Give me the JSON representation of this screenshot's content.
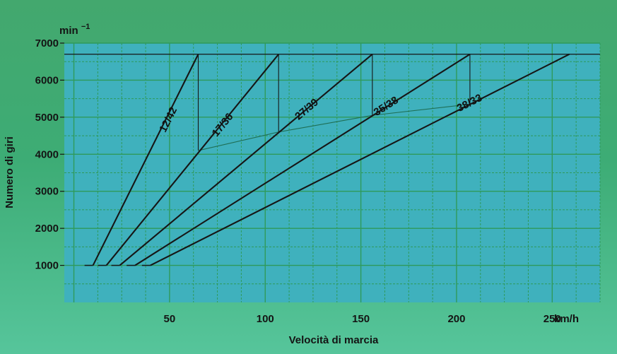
{
  "chart_data": {
    "type": "line",
    "title": "",
    "xlabel": "Velocità di marcia",
    "ylabel": "Numero di giri",
    "y_unit": "min",
    "y_unit_exponent": "−1",
    "x_unit": "km/h",
    "xlim": [
      -5,
      275
    ],
    "ylim": [
      0,
      7000
    ],
    "x_ticks": [
      50,
      100,
      150,
      200,
      250
    ],
    "y_ticks": [
      1000,
      2000,
      3000,
      4000,
      5000,
      6000,
      7000
    ],
    "grid": true,
    "max_rpm": 6700,
    "series": [
      {
        "name": "12/42",
        "x": [
          10,
          65
        ],
        "y": [
          1000,
          6700
        ]
      },
      {
        "name": "17/36",
        "x": [
          17,
          107
        ],
        "y": [
          1000,
          6700
        ]
      },
      {
        "name": "27/39",
        "x": [
          24,
          156
        ],
        "y": [
          1000,
          6700
        ]
      },
      {
        "name": "35/38",
        "x": [
          32,
          207
        ],
        "y": [
          1000,
          6700
        ]
      },
      {
        "name": "38/33",
        "x": [
          40,
          259
        ],
        "y": [
          1000,
          6700
        ]
      }
    ],
    "shift_points": {
      "x": [
        65,
        107,
        156,
        207
      ],
      "y": [
        4100,
        4600,
        5050,
        5350
      ]
    }
  },
  "colors": {
    "plot_bg": "#3fb1bd",
    "grid": "#2f9a5a",
    "line": "#161616",
    "shift": "#1f6f55"
  }
}
